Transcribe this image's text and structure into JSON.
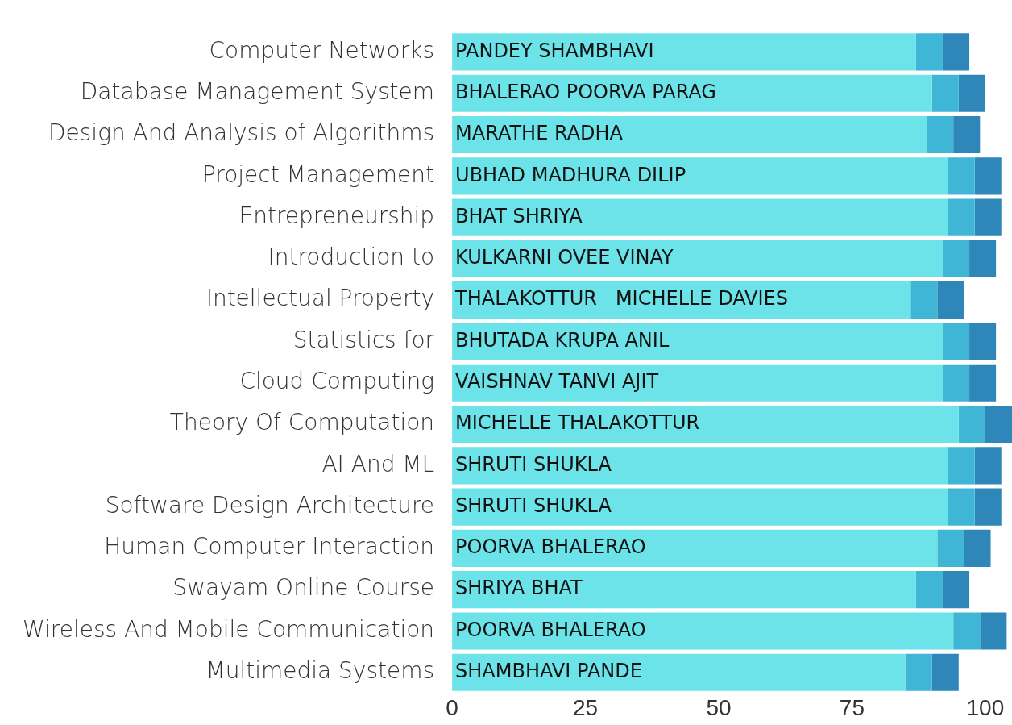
{
  "chart_data": {
    "type": "bar",
    "orientation": "horizontal",
    "stacked": true,
    "categories": [
      "Computer Networks",
      "Database Management System",
      "Design And Analysis of Algorithms",
      "Project Management",
      "Entrepreneurship",
      "Introduction to",
      "Intellectual Property",
      "Statistics for",
      "Cloud Computing",
      "Theory Of Computation",
      "AI And ML",
      "Software Design Architecture",
      "Human Computer Interaction",
      "Swayam Online Course",
      "Wireless And Mobile Communication",
      "Multimedia Systems"
    ],
    "series": [
      {
        "color": "#6be3e9",
        "values": [
          87,
          90,
          89,
          93,
          93,
          92,
          86,
          92,
          92,
          95,
          93,
          93,
          91,
          87,
          94,
          85
        ]
      },
      {
        "color": "#40b6d6",
        "values": [
          5,
          5,
          5,
          5,
          5,
          5,
          5,
          5,
          5,
          5,
          5,
          5,
          5,
          5,
          5,
          5
        ]
      },
      {
        "color": "#2e87b8",
        "values": [
          5,
          5,
          5,
          5,
          5,
          5,
          5,
          5,
          5,
          5,
          5,
          5,
          5,
          5,
          5,
          5
        ]
      }
    ],
    "xlim": [
      0,
      105
    ],
    "xticks": [
      0,
      25,
      50,
      75,
      100
    ],
    "grid": false,
    "legend": false,
    "annotations": [
      {
        "text": "PANDEY SHAMBHAVI",
        "y": "Computer Networks"
      },
      {
        "text": "BHALERAO POORVA PARAG",
        "y": "Database Management System"
      },
      {
        "text": "MARATHE RADHA",
        "y": "Design And Analysis of Algorithms"
      },
      {
        "text": "UBHAD MADHURA DILIP",
        "y": "Project Management"
      },
      {
        "text": "BHAT SHRIYA",
        "y": "Entrepreneurship"
      },
      {
        "text": "KULKARNI OVEE VINAY",
        "y": "Introduction to"
      },
      {
        "text": "THALAKOTTUR   MICHELLE DAVIES",
        "y": "Intellectual Property"
      },
      {
        "text": "BHUTADA KRUPA ANIL",
        "y": "Statistics for"
      },
      {
        "text": "VAISHNAV TANVI AJIT",
        "y": "Cloud Computing"
      },
      {
        "text": "MICHELLE THALAKOTTUR",
        "y": "Theory Of Computation"
      },
      {
        "text": "SHRUTI SHUKLA",
        "y": "AI And ML"
      },
      {
        "text": "SHRUTI SHUKLA",
        "y": "Software Design Architecture"
      },
      {
        "text": "POORVA BHALERAO",
        "y": "Human Computer Interaction"
      },
      {
        "text": "SHRIYA BHAT",
        "y": "Swayam Online Course"
      },
      {
        "text": "POORVA BHALERAO",
        "y": "Wireless And Mobile Communication"
      },
      {
        "text": "SHAMBHAVI PANDE",
        "y": "Multimedia Systems"
      }
    ]
  }
}
